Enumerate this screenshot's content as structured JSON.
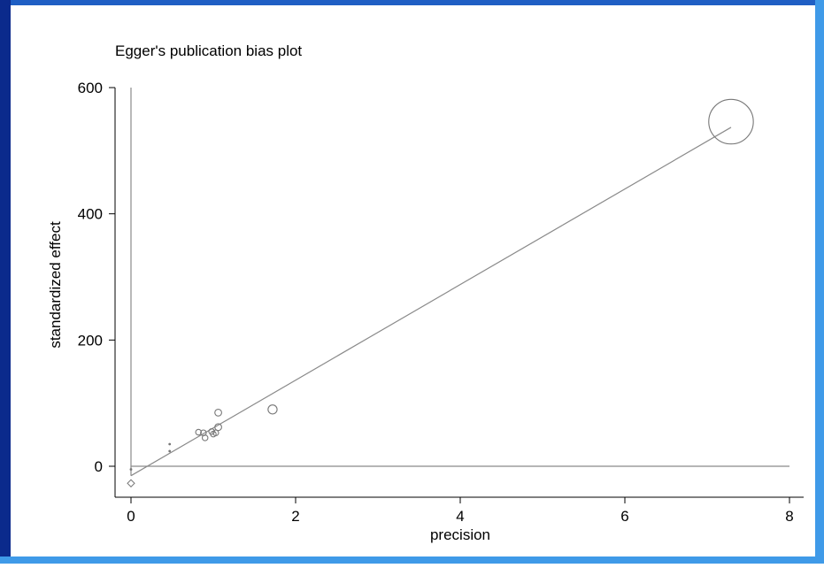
{
  "colors": {
    "border_left": "#0b2a8c",
    "border_right": "#3f9ae8",
    "border_bottom": "#3f9ae8",
    "border_top": "#1f5fc4",
    "line": "#8a8a8a",
    "marker": "#777777",
    "axis": "#000000"
  },
  "chart_data": {
    "type": "scatter",
    "title": "Egger's publication bias plot",
    "xlabel": "precision",
    "ylabel": "standardized effect",
    "xlim": [
      0,
      8
    ],
    "ylim": [
      -30,
      610
    ],
    "x_ticks": [
      0,
      2,
      4,
      6,
      8
    ],
    "y_ticks": [
      0,
      200,
      400,
      600
    ],
    "grid": false,
    "legend": "none",
    "points": [
      {
        "x": 0.0,
        "y": -5,
        "weight": 0.5,
        "marker": "dot"
      },
      {
        "x": 0.47,
        "y": 35,
        "weight": 0.3,
        "marker": "dot"
      },
      {
        "x": 0.47,
        "y": 24,
        "weight": 0.3,
        "marker": "dot"
      },
      {
        "x": 0.82,
        "y": 54,
        "weight": 1.0,
        "marker": "circle"
      },
      {
        "x": 0.88,
        "y": 53,
        "weight": 1.0,
        "marker": "circle"
      },
      {
        "x": 0.9,
        "y": 45,
        "weight": 1.0,
        "marker": "circle"
      },
      {
        "x": 0.98,
        "y": 55,
        "weight": 1.0,
        "marker": "circle"
      },
      {
        "x": 1.0,
        "y": 51,
        "weight": 1.0,
        "marker": "circle"
      },
      {
        "x": 1.03,
        "y": 53,
        "weight": 1.0,
        "marker": "circle"
      },
      {
        "x": 1.06,
        "y": 62,
        "weight": 1.2,
        "marker": "circle"
      },
      {
        "x": 1.06,
        "y": 85,
        "weight": 1.2,
        "marker": "circle"
      },
      {
        "x": 1.72,
        "y": 90,
        "weight": 1.6,
        "marker": "circle"
      },
      {
        "x": 7.29,
        "y": 546,
        "weight": 6.0,
        "marker": "circle"
      }
    ],
    "regression_line": {
      "x": [
        0,
        7.29
      ],
      "y": [
        -15,
        537
      ]
    },
    "intercept_marker": {
      "x": 0.0,
      "y": -27,
      "marker": "diamond"
    },
    "reference_lines": {
      "vertical_x": 0,
      "horizontal_y": 0
    }
  }
}
